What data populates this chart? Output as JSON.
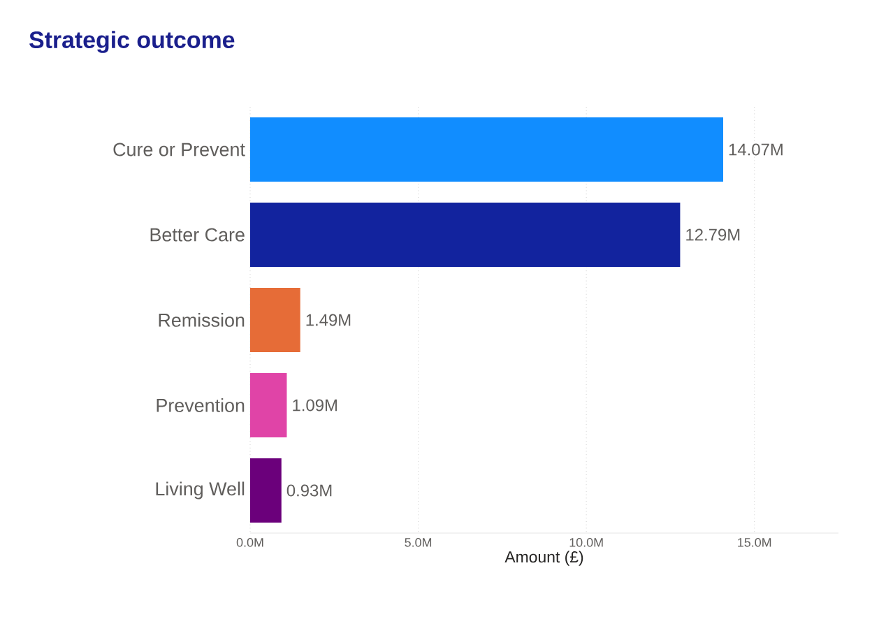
{
  "chart_data": {
    "type": "bar",
    "orientation": "horizontal",
    "title": "Strategic outcome",
    "xlabel": "Amount (£)",
    "categories": [
      "Cure or Prevent",
      "Better Care",
      "Remission",
      "Prevention",
      "Living Well"
    ],
    "values": [
      14.07,
      12.79,
      1.49,
      1.09,
      0.93
    ],
    "value_labels": [
      "14.07M",
      "12.79M",
      "1.49M",
      "1.09M",
      "0.93M"
    ],
    "colors": [
      "#118dff",
      "#12239e",
      "#e66c37",
      "#e044a7",
      "#6b007b"
    ],
    "xlim": [
      0,
      17.5
    ],
    "xticks": [
      {
        "value": 0,
        "label": "0.0M"
      },
      {
        "value": 5,
        "label": "5.0M"
      },
      {
        "value": 10,
        "label": "10.0M"
      },
      {
        "value": 15,
        "label": "15.0M"
      }
    ],
    "grid": "x"
  }
}
